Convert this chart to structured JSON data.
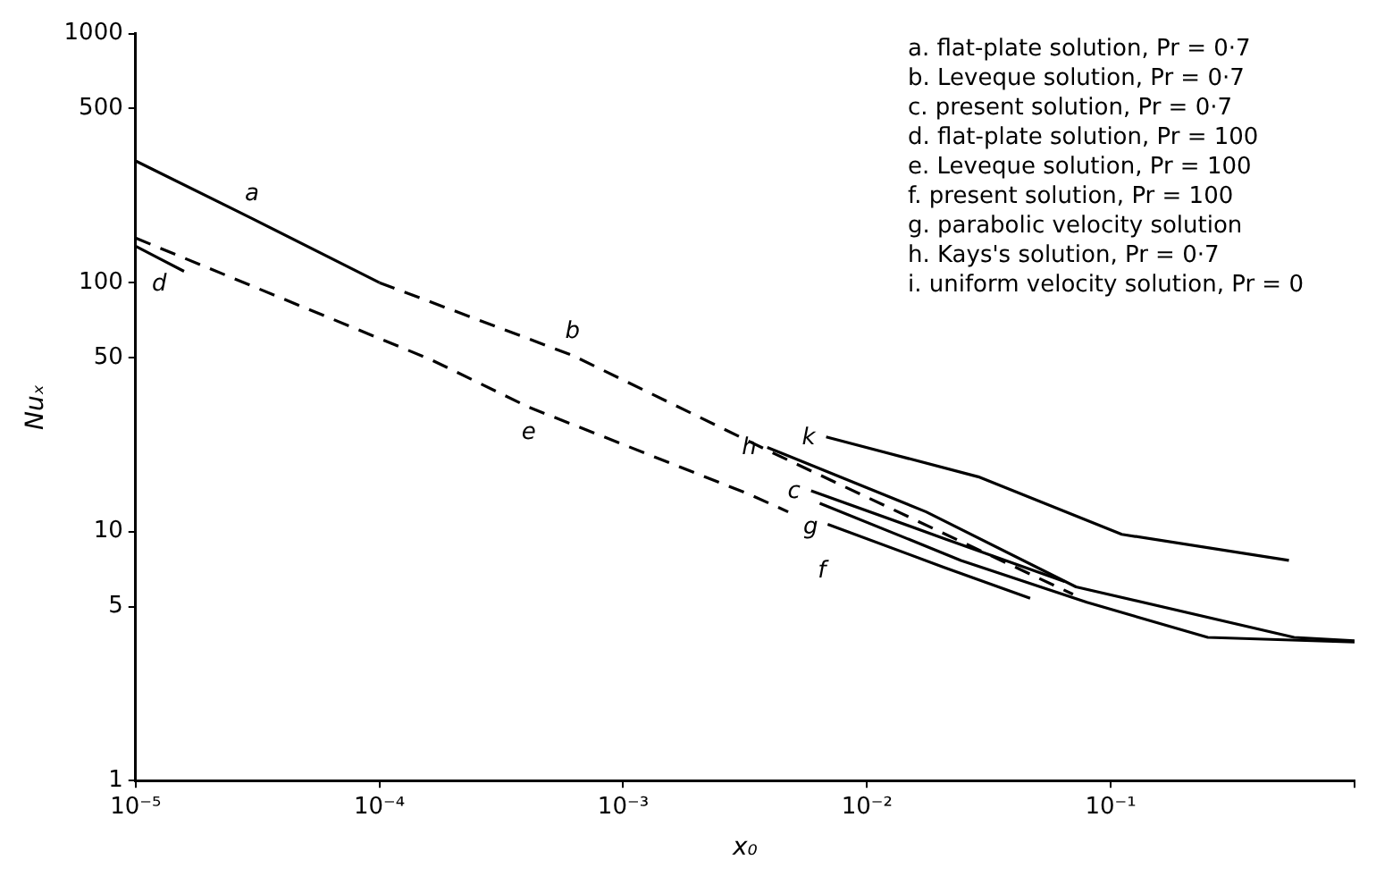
{
  "chart_data": {
    "type": "line",
    "xlabel": "x₀",
    "ylabel": "Nuₓ",
    "log": "xy",
    "grid": false,
    "legend": false,
    "xlim": [
      1e-05,
      1
    ],
    "ylim": [
      1,
      1000
    ],
    "xticks": [
      {
        "value": 1e-05,
        "label": "10⁻⁵"
      },
      {
        "value": 0.0001,
        "label": "10⁻⁴"
      },
      {
        "value": 0.001,
        "label": "10⁻³"
      },
      {
        "value": 0.01,
        "label": "10⁻²"
      },
      {
        "value": 0.1,
        "label": "10⁻¹"
      },
      {
        "value": 1,
        "label": null
      }
    ],
    "yticks": [
      1,
      5,
      10,
      50,
      100,
      500,
      1000
    ],
    "series": [
      {
        "name": "a",
        "color": "#000000",
        "line_style": "solid",
        "x": [
          1e-05,
          3e-05,
          0.0001
        ],
        "values": [
          308,
          181,
          100
        ]
      },
      {
        "name": "b",
        "color": "#000000",
        "line_style": "dashed",
        "x": [
          0.0001,
          0.00062,
          0.0042,
          0.07
        ],
        "values": [
          100,
          51,
          20.5,
          5.6
        ]
      },
      {
        "name": "c",
        "color": "#000000",
        "line_style": "solid",
        "x": [
          0.0059,
          0.0206,
          0.0646
        ],
        "values": [
          14.6,
          9.4,
          6.3
        ]
      },
      {
        "name": "d",
        "color": "#000000",
        "line_style": "solid",
        "x": [
          1e-05,
          1.25e-05,
          1.58e-05
        ],
        "values": [
          140,
          125,
          111
        ]
      },
      {
        "name": "e",
        "color": "#000000",
        "line_style": "dashed",
        "x": [
          1e-05,
          0.000163,
          0.00041,
          0.0033,
          0.00475
        ],
        "values": [
          151,
          49,
          31.6,
          14.1,
          12
        ]
      },
      {
        "name": "f",
        "color": "#000000",
        "line_style": "solid",
        "x": [
          0.0069,
          0.0206,
          0.0467
        ],
        "values": [
          10.7,
          7.2,
          5.4
        ]
      },
      {
        "name": "g",
        "color": "#000000",
        "line_style": "solid",
        "x": [
          0.0064,
          0.0243,
          0.0798,
          0.25,
          1
        ],
        "values": [
          13,
          7.66,
          5.2,
          3.76,
          3.6
        ]
      },
      {
        "name": "h",
        "color": "#000000",
        "line_style": "solid",
        "x": [
          0.0039,
          0.0175,
          0.072,
          0.565,
          1
        ],
        "values": [
          21.8,
          12,
          6,
          3.76,
          3.64
        ]
      },
      {
        "name": "k",
        "color": "#000000",
        "line_style": "solid",
        "x": [
          0.0068,
          0.0286,
          0.111,
          0.538
        ],
        "values": [
          24,
          16.6,
          9.75,
          7.66
        ]
      }
    ],
    "annotations": [
      "a. flat-plate solution, Pr = 0·7",
      "b. Leveque solution, Pr = 0·7",
      "c. present solution, Pr = 0·7",
      "d. flat-plate solution, Pr = 100",
      "e. Leveque solution, Pr = 100",
      "f. present solution, Pr = 100",
      "g. parabolic velocity solution",
      "h. Kays's solution, Pr = 0·7",
      "i. uniform velocity solution, Pr = 0"
    ]
  }
}
